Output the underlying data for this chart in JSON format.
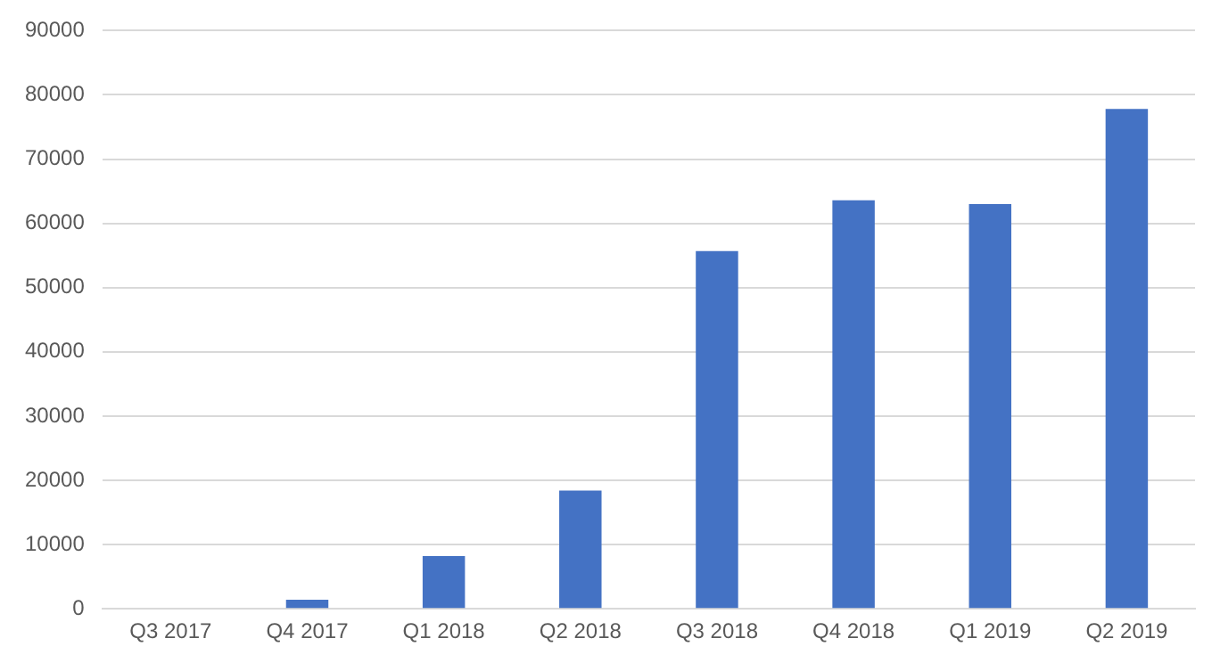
{
  "chart_data": {
    "type": "bar",
    "categories": [
      "Q3 2017",
      "Q4 2017",
      "Q1 2018",
      "Q2 2018",
      "Q3 2018",
      "Q4 2018",
      "Q1 2019",
      "Q2 2019"
    ],
    "values": [
      0,
      1400,
      8200,
      18400,
      55700,
      63600,
      63000,
      77800
    ],
    "color": "#4472c4",
    "ylim": [
      0,
      90000
    ],
    "yticks": [
      0,
      10000,
      20000,
      30000,
      40000,
      50000,
      60000,
      70000,
      80000,
      90000
    ],
    "grid": "y"
  }
}
